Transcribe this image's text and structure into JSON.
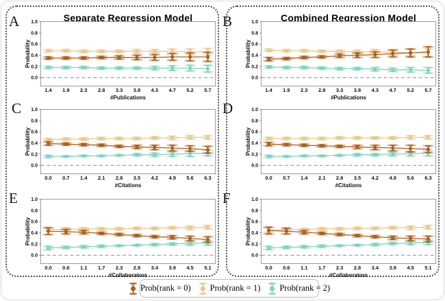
{
  "figure": {
    "columns": [
      {
        "title": "Separate Regression Model"
      },
      {
        "title": "Combined Regression Model"
      }
    ],
    "legend": {
      "items": [
        {
          "label": "Prob(rank = 0)",
          "color": "#b05e1a"
        },
        {
          "label": "Prob(rank = 1)",
          "color": "#e9c98b"
        },
        {
          "label": "Prob(rank = 2)",
          "color": "#7ed3c0"
        }
      ]
    },
    "colors": {
      "zero_line": "#888888",
      "frame": "#9a9a9a"
    }
  },
  "chart_data": [
    {
      "panel_label": "A",
      "type": "line",
      "group": "Separate Regression Model",
      "xlabel": "#Publications",
      "ylabel": "Probability",
      "x": [
        1.4,
        1.9,
        2.3,
        2.8,
        3.3,
        3.8,
        4.3,
        4.7,
        5.2,
        5.7
      ],
      "yticks": [
        0.0,
        0.2,
        0.4,
        0.6,
        0.8,
        1.0
      ],
      "ylim": [
        -0.15,
        1.0
      ],
      "series": [
        {
          "name": "Prob(rank = 0)",
          "color": "#b05e1a",
          "values": [
            0.35,
            0.35,
            0.35,
            0.36,
            0.36,
            0.36,
            0.36,
            0.37,
            0.37,
            0.37
          ],
          "errors": [
            0.02,
            0.02,
            0.02,
            0.02,
            0.03,
            0.04,
            0.05,
            0.06,
            0.07,
            0.08
          ]
        },
        {
          "name": "Prob(rank = 1)",
          "color": "#e9c98b",
          "values": [
            0.48,
            0.48,
            0.47,
            0.47,
            0.47,
            0.47,
            0.47,
            0.47,
            0.46,
            0.46
          ],
          "errors": [
            0.02,
            0.02,
            0.02,
            0.02,
            0.02,
            0.03,
            0.03,
            0.04,
            0.05,
            0.06
          ]
        },
        {
          "name": "Prob(rank = 2)",
          "color": "#7ed3c0",
          "values": [
            0.18,
            0.18,
            0.18,
            0.17,
            0.17,
            0.17,
            0.17,
            0.17,
            0.17,
            0.16
          ],
          "errors": [
            0.02,
            0.02,
            0.02,
            0.02,
            0.02,
            0.02,
            0.03,
            0.04,
            0.05,
            0.06
          ]
        }
      ]
    },
    {
      "panel_label": "B",
      "type": "line",
      "group": "Combined Regression Model",
      "xlabel": "#Publications",
      "ylabel": "Probability",
      "x": [
        1.4,
        1.9,
        2.3,
        2.8,
        3.3,
        3.8,
        4.3,
        4.7,
        5.2,
        5.7
      ],
      "yticks": [
        0.0,
        0.2,
        0.4,
        0.6,
        0.8,
        1.0
      ],
      "ylim": [
        -0.15,
        1.0
      ],
      "series": [
        {
          "name": "Prob(rank = 0)",
          "color": "#b05e1a",
          "values": [
            0.33,
            0.34,
            0.36,
            0.37,
            0.39,
            0.4,
            0.41,
            0.43,
            0.44,
            0.46
          ],
          "errors": [
            0.03,
            0.02,
            0.02,
            0.02,
            0.03,
            0.04,
            0.05,
            0.06,
            0.07,
            0.09
          ]
        },
        {
          "name": "Prob(rank = 1)",
          "color": "#e9c98b",
          "values": [
            0.49,
            0.48,
            0.48,
            0.47,
            0.47,
            0.46,
            0.46,
            0.45,
            0.45,
            0.44
          ],
          "errors": [
            0.02,
            0.02,
            0.02,
            0.02,
            0.02,
            0.03,
            0.04,
            0.05,
            0.06,
            0.07
          ]
        },
        {
          "name": "Prob(rank = 2)",
          "color": "#7ed3c0",
          "values": [
            0.19,
            0.18,
            0.18,
            0.17,
            0.16,
            0.16,
            0.15,
            0.14,
            0.14,
            0.13
          ],
          "errors": [
            0.02,
            0.02,
            0.02,
            0.02,
            0.02,
            0.02,
            0.03,
            0.03,
            0.04,
            0.05
          ]
        }
      ]
    },
    {
      "panel_label": "C",
      "type": "line",
      "group": "Separate Regression Model",
      "xlabel": "#Citations",
      "ylabel": "Probability",
      "x": [
        0.0,
        0.7,
        1.4,
        2.1,
        2.8,
        3.5,
        4.2,
        4.9,
        5.6,
        6.3
      ],
      "yticks": [
        0.0,
        0.2,
        0.4,
        0.6,
        0.8,
        1.0
      ],
      "ylim": [
        -0.15,
        1.0
      ],
      "series": [
        {
          "name": "Prob(rank = 0)",
          "color": "#b05e1a",
          "values": [
            0.39,
            0.38,
            0.37,
            0.36,
            0.34,
            0.33,
            0.32,
            0.31,
            0.3,
            0.28
          ],
          "errors": [
            0.03,
            0.02,
            0.02,
            0.02,
            0.02,
            0.03,
            0.04,
            0.05,
            0.05,
            0.06
          ]
        },
        {
          "name": "Prob(rank = 1)",
          "color": "#e9c98b",
          "values": [
            0.46,
            0.47,
            0.47,
            0.48,
            0.48,
            0.48,
            0.49,
            0.49,
            0.5,
            0.5
          ],
          "errors": [
            0.02,
            0.02,
            0.02,
            0.02,
            0.02,
            0.02,
            0.02,
            0.03,
            0.03,
            0.03
          ]
        },
        {
          "name": "Prob(rank = 2)",
          "color": "#7ed3c0",
          "values": [
            0.16,
            0.16,
            0.17,
            0.17,
            0.18,
            0.19,
            0.19,
            0.2,
            0.21,
            0.22
          ],
          "errors": [
            0.02,
            0.01,
            0.01,
            0.01,
            0.01,
            0.02,
            0.03,
            0.04,
            0.05,
            0.05
          ]
        }
      ]
    },
    {
      "panel_label": "D",
      "type": "line",
      "group": "Combined Regression Model",
      "xlabel": "#Citations",
      "ylabel": "Probability",
      "x": [
        0.0,
        0.7,
        1.4,
        2.1,
        2.8,
        3.5,
        4.2,
        4.9,
        5.6,
        6.3
      ],
      "yticks": [
        0.0,
        0.2,
        0.4,
        0.6,
        0.8,
        1.0
      ],
      "ylim": [
        -0.15,
        1.0
      ],
      "series": [
        {
          "name": "Prob(rank = 0)",
          "color": "#b05e1a",
          "values": [
            0.38,
            0.37,
            0.36,
            0.35,
            0.34,
            0.33,
            0.32,
            0.31,
            0.3,
            0.29
          ],
          "errors": [
            0.03,
            0.02,
            0.02,
            0.02,
            0.02,
            0.03,
            0.04,
            0.05,
            0.06,
            0.06
          ]
        },
        {
          "name": "Prob(rank = 1)",
          "color": "#e9c98b",
          "values": [
            0.48,
            0.48,
            0.48,
            0.48,
            0.49,
            0.49,
            0.49,
            0.49,
            0.5,
            0.5
          ],
          "errors": [
            0.02,
            0.02,
            0.02,
            0.02,
            0.02,
            0.02,
            0.02,
            0.02,
            0.03,
            0.03
          ]
        },
        {
          "name": "Prob(rank = 2)",
          "color": "#7ed3c0",
          "values": [
            0.16,
            0.16,
            0.17,
            0.17,
            0.18,
            0.19,
            0.19,
            0.2,
            0.21,
            0.22
          ],
          "errors": [
            0.02,
            0.01,
            0.01,
            0.01,
            0.01,
            0.02,
            0.02,
            0.03,
            0.04,
            0.05
          ]
        }
      ]
    },
    {
      "panel_label": "E",
      "type": "line",
      "group": "Separate Regression Model",
      "xlabel": "#Collaborators",
      "ylabel": "Probability",
      "x": [
        0.0,
        0.6,
        1.1,
        1.7,
        2.3,
        2.8,
        3.4,
        3.9,
        4.5,
        5.1
      ],
      "yticks": [
        0.0,
        0.2,
        0.4,
        0.6,
        0.8,
        1.0
      ],
      "ylim": [
        -0.15,
        1.0
      ],
      "series": [
        {
          "name": "Prob(rank = 0)",
          "color": "#b05e1a",
          "values": [
            0.43,
            0.42,
            0.41,
            0.39,
            0.37,
            0.35,
            0.33,
            0.32,
            0.3,
            0.28
          ],
          "errors": [
            0.06,
            0.04,
            0.03,
            0.02,
            0.02,
            0.02,
            0.02,
            0.03,
            0.04,
            0.05
          ]
        },
        {
          "name": "Prob(rank = 1)",
          "color": "#e9c98b",
          "values": [
            0.46,
            0.46,
            0.47,
            0.47,
            0.47,
            0.48,
            0.48,
            0.49,
            0.49,
            0.5
          ],
          "errors": [
            0.03,
            0.03,
            0.02,
            0.02,
            0.02,
            0.02,
            0.02,
            0.02,
            0.03,
            0.03
          ]
        },
        {
          "name": "Prob(rank = 2)",
          "color": "#7ed3c0",
          "values": [
            0.13,
            0.14,
            0.15,
            0.16,
            0.17,
            0.18,
            0.19,
            0.2,
            0.21,
            0.22
          ],
          "errors": [
            0.03,
            0.02,
            0.02,
            0.02,
            0.01,
            0.01,
            0.02,
            0.02,
            0.03,
            0.04
          ]
        }
      ]
    },
    {
      "panel_label": "F",
      "type": "line",
      "group": "Combined Regression Model",
      "xlabel": "#Collaborators",
      "ylabel": "Probability",
      "x": [
        0.0,
        0.6,
        1.1,
        1.7,
        2.3,
        2.8,
        3.4,
        3.9,
        4.5,
        5.1
      ],
      "yticks": [
        0.0,
        0.2,
        0.4,
        0.6,
        0.8,
        1.0
      ],
      "ylim": [
        -0.15,
        1.0
      ],
      "series": [
        {
          "name": "Prob(rank = 0)",
          "color": "#b05e1a",
          "values": [
            0.44,
            0.43,
            0.41,
            0.39,
            0.37,
            0.35,
            0.33,
            0.31,
            0.3,
            0.29
          ],
          "errors": [
            0.06,
            0.05,
            0.03,
            0.02,
            0.02,
            0.02,
            0.02,
            0.03,
            0.04,
            0.05
          ]
        },
        {
          "name": "Prob(rank = 1)",
          "color": "#e9c98b",
          "values": [
            0.45,
            0.46,
            0.46,
            0.47,
            0.47,
            0.48,
            0.48,
            0.49,
            0.49,
            0.5
          ],
          "errors": [
            0.04,
            0.03,
            0.02,
            0.02,
            0.02,
            0.02,
            0.02,
            0.02,
            0.03,
            0.03
          ]
        },
        {
          "name": "Prob(rank = 2)",
          "color": "#7ed3c0",
          "values": [
            0.13,
            0.14,
            0.15,
            0.16,
            0.17,
            0.18,
            0.19,
            0.21,
            0.22,
            0.23
          ],
          "errors": [
            0.03,
            0.02,
            0.02,
            0.02,
            0.01,
            0.01,
            0.02,
            0.02,
            0.03,
            0.04
          ]
        }
      ]
    }
  ]
}
